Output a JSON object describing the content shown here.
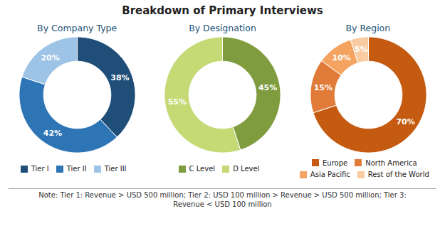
{
  "title": "Breakdown of Primary Interviews",
  "annotations": [
    "Note: Tier 1: Revenue > USD 500 million; Tier 2: USD 100 million > Revenue > USD 500 million; Tier 3:\nRevenue < USD 100 million"
  ],
  "chart_data": [
    {
      "type": "pie",
      "title": "By Company Type",
      "categories": [
        "Tier I",
        "Tier II",
        "Tier III"
      ],
      "values": [
        38,
        42,
        20
      ],
      "value_labels": [
        "38%",
        "42%",
        "20%"
      ],
      "colors": [
        "#1f4e79",
        "#2e75b6",
        "#9dc3e6"
      ],
      "data_labels": true,
      "legend": "bottom"
    },
    {
      "type": "pie",
      "title": "By Designation",
      "categories": [
        "C Level",
        "D Level"
      ],
      "values": [
        45,
        55
      ],
      "value_labels": [
        "45%",
        "55%"
      ],
      "colors": [
        "#7f9c3e",
        "#c5d975"
      ],
      "data_labels": true,
      "legend": "bottom"
    },
    {
      "type": "pie",
      "title": "By Region",
      "categories": [
        "Europe",
        "North America",
        "Asia Pacific",
        "Rest of the World"
      ],
      "values": [
        70,
        15,
        10,
        5
      ],
      "value_labels": [
        "70%",
        "15%",
        "10%",
        "5%"
      ],
      "colors": [
        "#c55a11",
        "#e07b39",
        "#f4a460",
        "#f8cba0"
      ],
      "data_labels": true,
      "legend": "bottom"
    }
  ]
}
